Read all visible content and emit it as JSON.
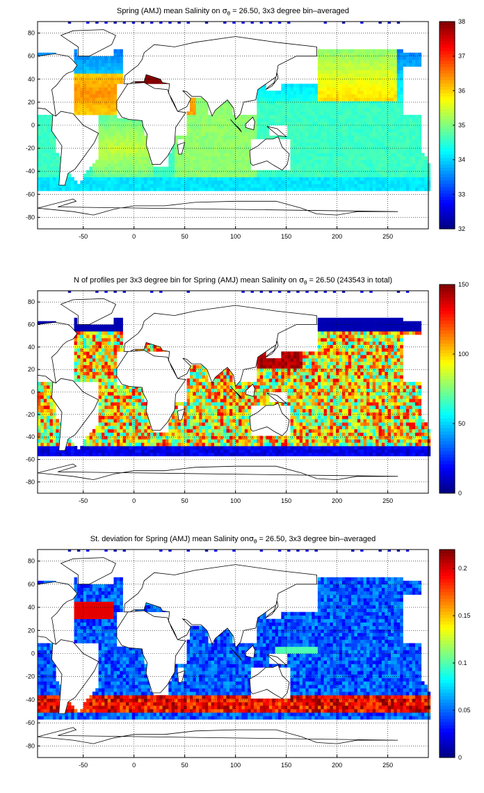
{
  "figure": {
    "background": "#ffffff",
    "colormap": "jet",
    "land_color": "#ffffff",
    "coastline_color": "#000000"
  },
  "chart_data": [
    {
      "type": "heatmap",
      "title_prefix": "Spring (AMJ) mean Salinity on ",
      "title_symbol": "σ",
      "title_sub": "θ",
      "title_suffix": " = 26.50, 3x3 degree bin–averaged",
      "xlim": [
        -95,
        290
      ],
      "ylim": [
        -90,
        90
      ],
      "xticks": [
        -50,
        0,
        50,
        100,
        150,
        200,
        250
      ],
      "yticks": [
        -80,
        -60,
        -40,
        -20,
        0,
        20,
        40,
        60,
        80
      ],
      "grid": true,
      "colorbar": {
        "min": 32,
        "max": 38,
        "ticks": [
          32,
          33,
          34,
          35,
          36,
          37,
          38
        ]
      },
      "field": "salinity"
    },
    {
      "type": "heatmap",
      "title_prefix": "N of profiles per 3x3 degree bin for Spring (AMJ) mean Salinity on ",
      "title_symbol": "σ",
      "title_sub": "θ",
      "title_suffix": " = 26.50 (243543 in total)",
      "xlim": [
        -95,
        290
      ],
      "ylim": [
        -90,
        90
      ],
      "xticks": [
        -50,
        0,
        50,
        100,
        150,
        200,
        250
      ],
      "yticks": [
        -80,
        -60,
        -40,
        -20,
        0,
        20,
        40,
        60,
        80
      ],
      "grid": true,
      "colorbar": {
        "min": 0,
        "max": 150,
        "ticks": [
          0,
          50,
          100,
          150
        ]
      },
      "field": "profile_count"
    },
    {
      "type": "heatmap",
      "title_prefix": "St. deviation for Spring (AMJ) mean Salinity on",
      "title_symbol": "σ",
      "title_sub": "θ",
      "title_suffix": " = 26.50, 3x3 degree bin–averaged",
      "xlim": [
        -95,
        290
      ],
      "ylim": [
        -90,
        90
      ],
      "xticks": [
        -50,
        0,
        50,
        100,
        150,
        200,
        250
      ],
      "yticks": [
        -80,
        -60,
        -40,
        -20,
        0,
        20,
        40,
        60,
        80
      ],
      "grid": true,
      "colorbar": {
        "min": 0,
        "max": 0.22,
        "ticks": [
          0,
          0.05,
          0.1,
          0.15,
          0.2
        ]
      },
      "field": "salinity_std"
    }
  ]
}
